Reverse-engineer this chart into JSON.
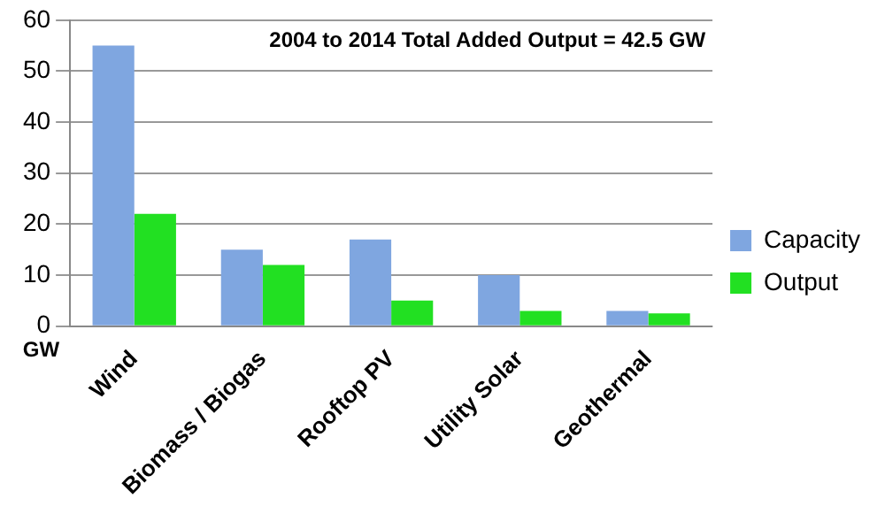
{
  "chart_data": {
    "type": "bar",
    "ylabel": "GW",
    "annotations": [
      "2004 to 2014 Total Added Output = 42.5 GW"
    ],
    "categories": [
      "Wind",
      "Biomass / Biogas",
      "Rooftop PV",
      "Utility Solar",
      "Geothermal"
    ],
    "series": [
      {
        "name": "Capacity",
        "color": "#7fa6e0",
        "values": [
          55,
          15,
          17,
          10,
          3
        ]
      },
      {
        "name": "Output",
        "color": "#22e022",
        "values": [
          22,
          12,
          5,
          3,
          2.5
        ]
      }
    ],
    "ylim": [
      0,
      60
    ],
    "yticks": [
      0,
      10,
      20,
      30,
      40,
      50,
      60
    ],
    "grid": "y",
    "legend": "right"
  }
}
